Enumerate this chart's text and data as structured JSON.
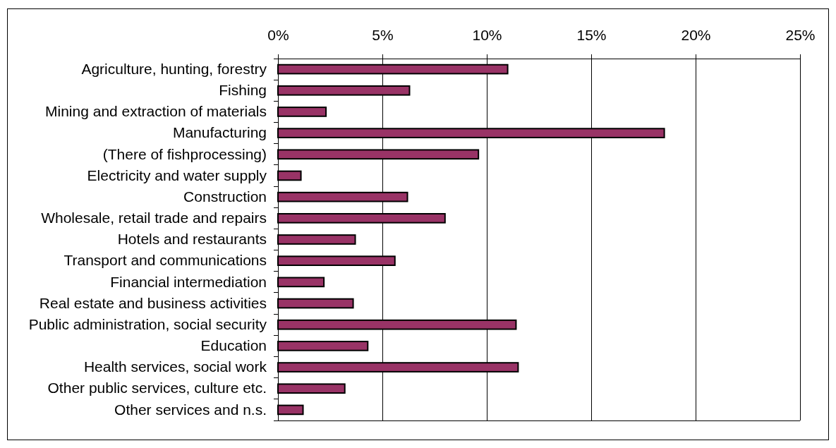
{
  "chart_data": {
    "type": "bar",
    "orientation": "horizontal",
    "categories": [
      "Agriculture, hunting, forestry",
      "Fishing",
      "Mining and extraction of materials",
      "Manufacturing",
      "(There of fishprocessing)",
      "Electricity and water supply",
      "Construction",
      "Wholesale, retail trade and repairs",
      "Hotels and restaurants",
      "Transport and communications",
      "Financial intermediation",
      "Real estate and business activities",
      "Public administration, social security",
      "Education",
      "Health services, social work",
      "Other public services, culture etc.",
      "Other services and n.s."
    ],
    "values": [
      11.0,
      6.3,
      2.3,
      18.5,
      9.6,
      1.1,
      6.2,
      8.0,
      3.7,
      5.6,
      2.2,
      3.6,
      11.4,
      4.3,
      11.5,
      3.2,
      1.2
    ],
    "color": "#993366",
    "xlim": [
      0,
      25
    ],
    "xticks": [
      {
        "value": 0,
        "label": "0%"
      },
      {
        "value": 5,
        "label": "5%"
      },
      {
        "value": 10,
        "label": "10%"
      },
      {
        "value": 15,
        "label": "15%"
      },
      {
        "value": 20,
        "label": "20%"
      },
      {
        "value": 25,
        "label": "25%"
      }
    ],
    "grid": "x"
  }
}
